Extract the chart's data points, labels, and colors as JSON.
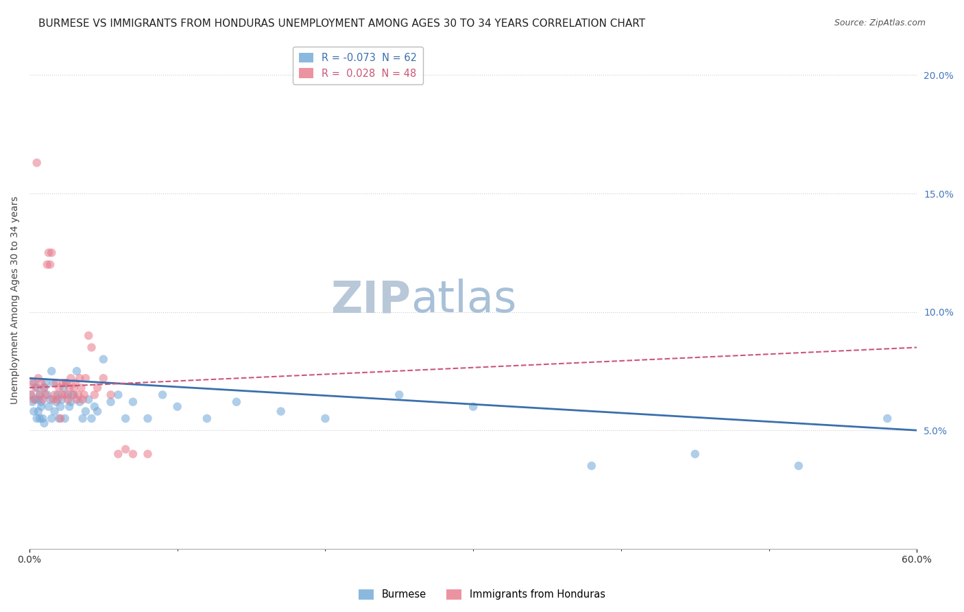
{
  "title": "BURMESE VS IMMIGRANTS FROM HONDURAS UNEMPLOYMENT AMONG AGES 30 TO 34 YEARS CORRELATION CHART",
  "source": "Source: ZipAtlas.com",
  "ylabel": "Unemployment Among Ages 30 to 34 years",
  "legend_entries": [
    {
      "label": "R = -0.073  N = 62",
      "color": "#6ea6d8"
    },
    {
      "label": "R =  0.028  N = 48",
      "color": "#e8788a"
    }
  ],
  "burmese_x": [
    0.001,
    0.002,
    0.003,
    0.003,
    0.004,
    0.005,
    0.005,
    0.006,
    0.006,
    0.007,
    0.007,
    0.008,
    0.008,
    0.009,
    0.01,
    0.01,
    0.011,
    0.012,
    0.013,
    0.014,
    0.015,
    0.015,
    0.016,
    0.017,
    0.018,
    0.019,
    0.02,
    0.021,
    0.022,
    0.023,
    0.024,
    0.025,
    0.026,
    0.027,
    0.028,
    0.03,
    0.032,
    0.034,
    0.036,
    0.038,
    0.04,
    0.042,
    0.044,
    0.046,
    0.05,
    0.055,
    0.06,
    0.065,
    0.07,
    0.08,
    0.09,
    0.1,
    0.12,
    0.14,
    0.17,
    0.2,
    0.25,
    0.3,
    0.38,
    0.45,
    0.52,
    0.58
  ],
  "burmese_y": [
    0.065,
    0.062,
    0.058,
    0.07,
    0.063,
    0.055,
    0.068,
    0.063,
    0.058,
    0.065,
    0.055,
    0.06,
    0.062,
    0.055,
    0.068,
    0.053,
    0.07,
    0.065,
    0.06,
    0.063,
    0.055,
    0.075,
    0.07,
    0.058,
    0.062,
    0.065,
    0.055,
    0.06,
    0.063,
    0.068,
    0.055,
    0.07,
    0.065,
    0.06,
    0.062,
    0.065,
    0.075,
    0.062,
    0.055,
    0.058,
    0.063,
    0.055,
    0.06,
    0.058,
    0.08,
    0.062,
    0.065,
    0.055,
    0.062,
    0.055,
    0.065,
    0.06,
    0.055,
    0.062,
    0.058,
    0.055,
    0.065,
    0.06,
    0.035,
    0.04,
    0.035,
    0.055
  ],
  "honduras_x": [
    0.001,
    0.002,
    0.003,
    0.004,
    0.005,
    0.006,
    0.007,
    0.008,
    0.009,
    0.01,
    0.011,
    0.012,
    0.013,
    0.014,
    0.015,
    0.016,
    0.017,
    0.018,
    0.019,
    0.02,
    0.021,
    0.022,
    0.023,
    0.024,
    0.025,
    0.026,
    0.027,
    0.028,
    0.029,
    0.03,
    0.031,
    0.032,
    0.033,
    0.034,
    0.035,
    0.036,
    0.037,
    0.038,
    0.04,
    0.042,
    0.044,
    0.046,
    0.05,
    0.055,
    0.06,
    0.065,
    0.07,
    0.08
  ],
  "honduras_y": [
    0.065,
    0.07,
    0.063,
    0.068,
    0.163,
    0.072,
    0.065,
    0.07,
    0.063,
    0.068,
    0.065,
    0.12,
    0.125,
    0.12,
    0.125,
    0.063,
    0.065,
    0.07,
    0.063,
    0.068,
    0.055,
    0.065,
    0.07,
    0.065,
    0.07,
    0.063,
    0.068,
    0.072,
    0.065,
    0.068,
    0.07,
    0.063,
    0.065,
    0.072,
    0.068,
    0.063,
    0.065,
    0.072,
    0.09,
    0.085,
    0.065,
    0.068,
    0.072,
    0.065,
    0.04,
    0.042,
    0.04,
    0.04
  ],
  "blue_color": "#6ea6d8",
  "pink_color": "#e8788a",
  "blue_line_color": "#3a6fad",
  "pink_line_color": "#cc5577",
  "background_color": "#ffffff",
  "grid_color": "#cccccc",
  "xlim": [
    0,
    0.6
  ],
  "ylim": [
    0,
    0.21
  ],
  "yticks_right": [
    0.05,
    0.1,
    0.15,
    0.2
  ],
  "title_fontsize": 11,
  "axis_label_fontsize": 10,
  "tick_fontsize": 10,
  "marker_size": 9,
  "marker_alpha": 0.55,
  "blue_trend_start_y": 0.072,
  "blue_trend_end_y": 0.05,
  "pink_trend_start_y": 0.068,
  "pink_trend_end_y": 0.085
}
